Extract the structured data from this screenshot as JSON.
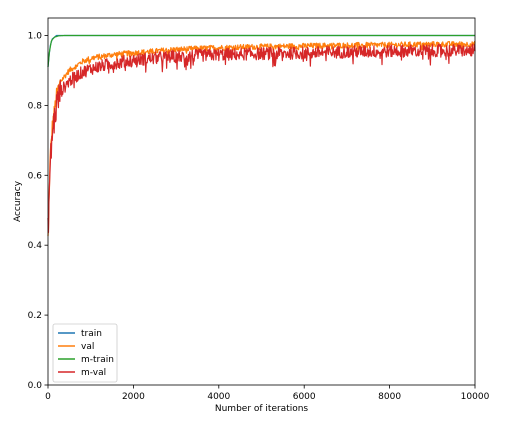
{
  "chart_data": {
    "type": "line",
    "xlabel": "Number of iterations",
    "ylabel": "Accuracy",
    "xlim": [
      0,
      10000
    ],
    "ylim": [
      0.0,
      1.05
    ],
    "x_ticks": [
      "0",
      "2000",
      "4000",
      "6000",
      "8000",
      "10000"
    ],
    "x_tick_values": [
      0,
      2000,
      4000,
      6000,
      8000,
      10000
    ],
    "y_ticks": [
      "0.0",
      "0.2",
      "0.4",
      "0.6",
      "0.8",
      "1.0"
    ],
    "y_tick_values": [
      0.0,
      0.2,
      0.4,
      0.6,
      0.8,
      1.0
    ],
    "grid": false,
    "legend_position": "lower-left",
    "series": [
      {
        "name": "train",
        "color": "#1f77b4",
        "x": [
          0,
          50,
          100,
          200,
          400,
          1000,
          3000,
          6000,
          10000
        ],
        "y": [
          0.91,
          0.97,
          0.99,
          1.0,
          1.0,
          1.0,
          1.0,
          1.0,
          1.0
        ],
        "noise": 0.0
      },
      {
        "name": "val",
        "color": "#ff7f0e",
        "x": [
          0,
          50,
          100,
          200,
          300,
          500,
          800,
          1000,
          1500,
          2000,
          3000,
          4000,
          5000,
          6000,
          7000,
          8000,
          9000,
          10000
        ],
        "y": [
          0.42,
          0.65,
          0.74,
          0.83,
          0.87,
          0.9,
          0.925,
          0.935,
          0.945,
          0.95,
          0.96,
          0.965,
          0.968,
          0.97,
          0.972,
          0.973,
          0.975,
          0.975
        ],
        "noise": 0.008
      },
      {
        "name": "m-train",
        "color": "#2ca02c",
        "x": [
          0,
          30,
          80,
          150,
          250,
          400,
          1000,
          3000,
          6000,
          10000
        ],
        "y": [
          0.91,
          0.95,
          0.985,
          0.995,
          0.999,
          1.0,
          1.0,
          1.0,
          1.0,
          1.0
        ],
        "noise": 0.0
      },
      {
        "name": "m-val",
        "color": "#d62728",
        "x": [
          0,
          50,
          100,
          200,
          300,
          500,
          800,
          1000,
          1500,
          2000,
          3000,
          4000,
          5000,
          6000,
          7000,
          8000,
          9000,
          10000
        ],
        "y": [
          0.44,
          0.62,
          0.72,
          0.8,
          0.84,
          0.87,
          0.895,
          0.905,
          0.92,
          0.93,
          0.94,
          0.945,
          0.948,
          0.95,
          0.953,
          0.955,
          0.957,
          0.957
        ],
        "noise": 0.018
      }
    ]
  }
}
